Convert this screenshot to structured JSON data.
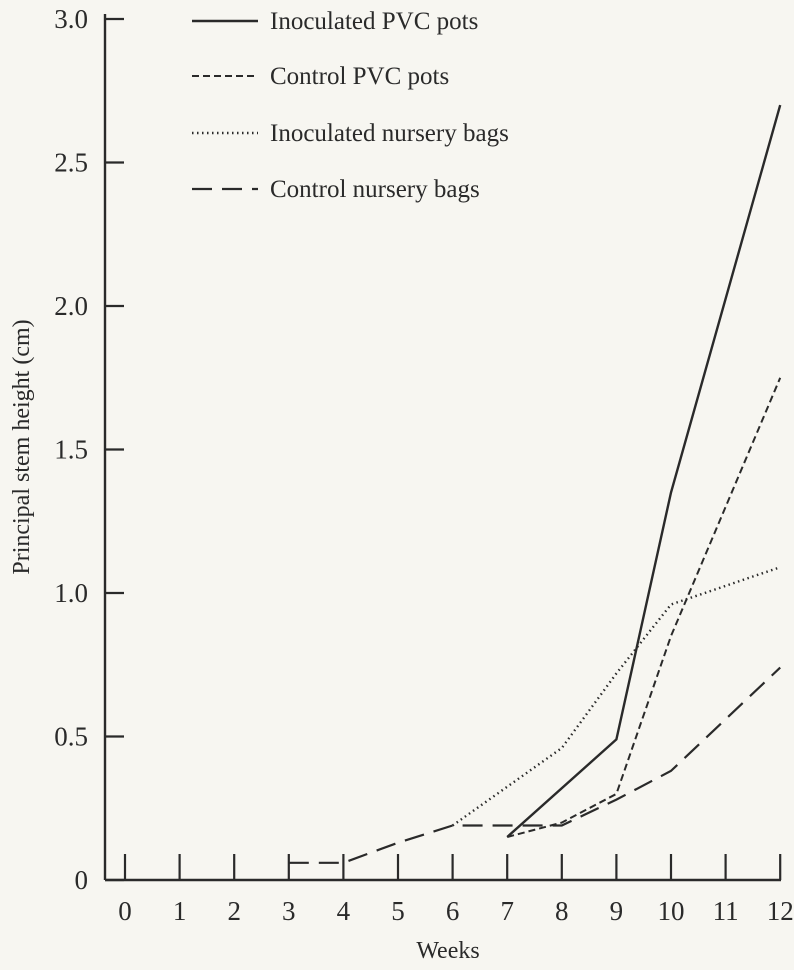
{
  "chart_data": {
    "type": "line",
    "title": "",
    "xlabel": "Weeks",
    "ylabel": "Principal stem height (cm)",
    "xlim": [
      0,
      12
    ],
    "ylim": [
      0,
      3.0
    ],
    "x_ticks": [
      0,
      1,
      2,
      3,
      4,
      5,
      6,
      7,
      8,
      9,
      10,
      11,
      12
    ],
    "x_tick_labels": [
      "0",
      "1",
      "2",
      "3",
      "4",
      "5",
      "6",
      "7",
      "8",
      "9",
      "10",
      "11",
      "12"
    ],
    "y_ticks": [
      0,
      0.5,
      1.0,
      1.5,
      2.0,
      2.5,
      3.0
    ],
    "y_tick_labels": [
      "0",
      "0.5",
      "1.0",
      "1.5",
      "2.0",
      "2.5",
      "3.0"
    ],
    "grid": false,
    "legend_position": "top-left",
    "series": [
      {
        "name": "Inoculated PVC pots",
        "style": "solid",
        "x": [
          7,
          9,
          10,
          12
        ],
        "y": [
          0.15,
          0.49,
          1.35,
          2.7
        ]
      },
      {
        "name": "Control PVC pots",
        "style": "short-dash",
        "x": [
          7,
          8,
          9,
          10,
          12
        ],
        "y": [
          0.15,
          0.2,
          0.3,
          0.85,
          1.75
        ]
      },
      {
        "name": "Inoculated nursery bags",
        "style": "dotted",
        "x": [
          6,
          8,
          9,
          10,
          12
        ],
        "y": [
          0.19,
          0.46,
          0.72,
          0.96,
          1.09
        ]
      },
      {
        "name": "Control nursery bags",
        "style": "long-dash",
        "x": [
          3,
          4,
          5,
          6,
          7,
          8,
          9,
          10,
          12
        ],
        "y": [
          0.06,
          0.06,
          0.13,
          0.19,
          0.19,
          0.19,
          0.28,
          0.38,
          0.74
        ]
      }
    ]
  }
}
